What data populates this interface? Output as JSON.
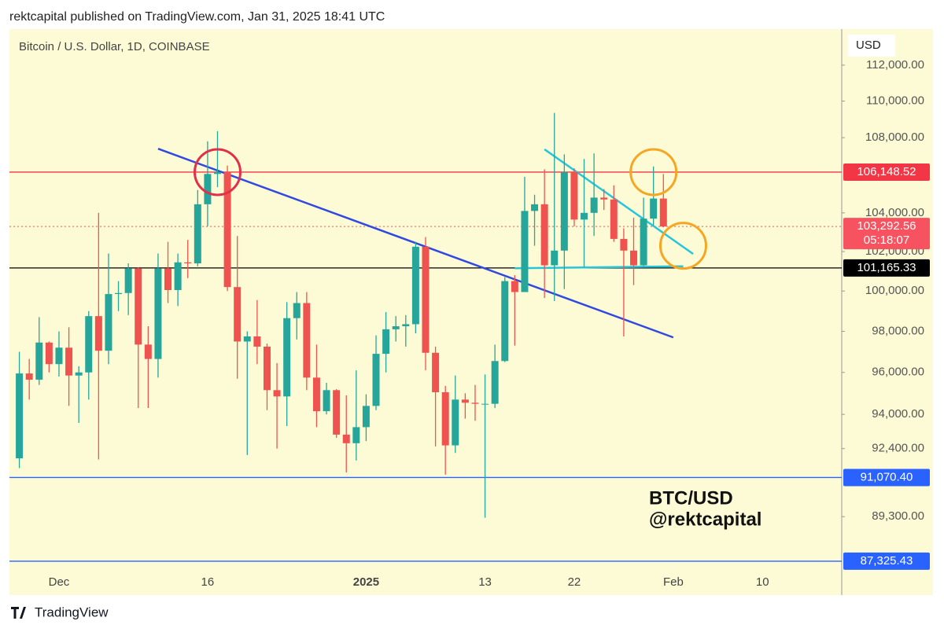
{
  "chart_data": {
    "type": "candlestick",
    "header": "rektcapital published on TradingView.com, Jan 31, 2025 18:41 UTC",
    "title": "Bitcoin / U.S. Dollar, 1D, COINBASE",
    "currency": "USD",
    "brand": "TradingView",
    "annotations": [
      "BTC/USD",
      "@rektcapital"
    ],
    "log_scale": true,
    "up_color": "#26a69a",
    "down_color": "#ef5350",
    "x": [
      "2024-11-27",
      "2024-11-28",
      "2024-11-29",
      "2024-11-30",
      "2024-12-01",
      "2024-12-02",
      "2024-12-03",
      "2024-12-04",
      "2024-12-05",
      "2024-12-06",
      "2024-12-07",
      "2024-12-08",
      "2024-12-09",
      "2024-12-10",
      "2024-12-11",
      "2024-12-12",
      "2024-12-13",
      "2024-12-14",
      "2024-12-15",
      "2024-12-16",
      "2024-12-17",
      "2024-12-18",
      "2024-12-19",
      "2024-12-20",
      "2024-12-21",
      "2024-12-22",
      "2024-12-23",
      "2024-12-24",
      "2024-12-25",
      "2024-12-26",
      "2024-12-27",
      "2024-12-28",
      "2024-12-29",
      "2024-12-30",
      "2024-12-31",
      "2025-01-01",
      "2025-01-02",
      "2025-01-03",
      "2025-01-04",
      "2025-01-05",
      "2025-01-06",
      "2025-01-07",
      "2025-01-08",
      "2025-01-09",
      "2025-01-10",
      "2025-01-11",
      "2025-01-12",
      "2025-01-13",
      "2025-01-14",
      "2025-01-15",
      "2025-01-16",
      "2025-01-17",
      "2025-01-18",
      "2025-01-19",
      "2025-01-20",
      "2025-01-21",
      "2025-01-22",
      "2025-01-23",
      "2025-01-24",
      "2025-01-25",
      "2025-01-26",
      "2025-01-27",
      "2025-01-28",
      "2025-01-29",
      "2025-01-30",
      "2025-01-31"
    ],
    "open": [
      91950,
      95950,
      95650,
      97450,
      96400,
      97200,
      95850,
      96000,
      98750,
      97050,
      99850,
      99900,
      101150,
      97350,
      96650,
      101150,
      100050,
      101450,
      101400,
      104450,
      106050,
      106150,
      100200,
      97500,
      97750,
      97250,
      95150,
      94850,
      98650,
      99400,
      95750,
      94150,
      95150,
      93050,
      92650,
      93400,
      94400,
      96900,
      98100,
      98250,
      98350,
      102250,
      96950,
      95050,
      92550,
      94700,
      94550,
      94500,
      94500,
      96550,
      100500,
      99950,
      104100,
      104450,
      101300,
      102050,
      106150,
      103650,
      104000,
      104800,
      104700,
      102650,
      102050,
      101300,
      103700,
      104750
    ],
    "high": [
      97000,
      96650,
      98700,
      97500,
      98000,
      98200,
      96300,
      99000,
      104000,
      101900,
      100500,
      101400,
      101200,
      98250,
      101900,
      102500,
      101900,
      102600,
      105200,
      107800,
      108350,
      106500,
      102800,
      98000,
      99550,
      97400,
      96450,
      99450,
      99950,
      99950,
      97350,
      95500,
      95200,
      94900,
      96100,
      94950,
      97800,
      98950,
      98750,
      98800,
      102500,
      102750,
      97250,
      95350,
      95850,
      95000,
      95400,
      95900,
      97350,
      100700,
      100800,
      105900,
      104950,
      106300,
      109350,
      107100,
      106350,
      106850,
      107150,
      105250,
      105450,
      103200,
      103750,
      104800,
      106450,
      106050
    ],
    "low": [
      91500,
      94700,
      95400,
      96000,
      95800,
      94400,
      93600,
      94700,
      91900,
      96400,
      99000,
      98800,
      94300,
      94300,
      95750,
      99400,
      99250,
      100650,
      101250,
      103300,
      105350,
      100000,
      95700,
      92100,
      96400,
      94200,
      92400,
      93450,
      97600,
      95150,
      93400,
      94000,
      92900,
      91300,
      91850,
      92750,
      94200,
      96000,
      97500,
      97250,
      97900,
      96100,
      92500,
      91200,
      92200,
      93800,
      93700,
      89250,
      94300,
      96500,
      97300,
      99950,
      102300,
      99650,
      99500,
      100100,
      103300,
      101200,
      102800,
      104150,
      102500,
      97750,
      100300,
      101250,
      103350,
      103250
    ],
    "close": [
      95950,
      95650,
      97450,
      96400,
      97200,
      95850,
      96000,
      98750,
      97050,
      99850,
      99900,
      101150,
      97350,
      96650,
      101150,
      100050,
      101450,
      101400,
      104450,
      106050,
      106150,
      100200,
      97500,
      97750,
      97250,
      95150,
      94850,
      98650,
      99400,
      95750,
      94150,
      95150,
      93050,
      92650,
      93400,
      94400,
      96900,
      98100,
      98250,
      98350,
      102250,
      96950,
      95050,
      92550,
      94700,
      94550,
      94500,
      94500,
      96550,
      100500,
      99950,
      104100,
      104450,
      101300,
      102050,
      106150,
      103650,
      104000,
      104800,
      104700,
      102650,
      102050,
      101300,
      103700,
      104750,
      103290
    ],
    "xlim": [
      "2024-11-26",
      "2025-02-18"
    ],
    "xticks": [
      {
        "value": "2024-12-01",
        "label": "Dec"
      },
      {
        "value": "2024-12-16",
        "label": "16"
      },
      {
        "value": "2025-01-01",
        "label": "2025"
      },
      {
        "value": "2025-01-13",
        "label": "13"
      },
      {
        "value": "2025-01-22",
        "label": "22"
      },
      {
        "value": "2025-02-01",
        "label": "Feb"
      },
      {
        "value": "2025-02-10",
        "label": "10"
      }
    ],
    "ylim": [
      86500,
      114000
    ],
    "yticks": [
      {
        "value": 112000,
        "label": "112,000.00"
      },
      {
        "value": 110000,
        "label": "110,000.00"
      },
      {
        "value": 108000,
        "label": "108,000.00"
      },
      {
        "value": 104000,
        "label": "104,000.00"
      },
      {
        "value": 102000,
        "label": "102,000.00"
      },
      {
        "value": 100000,
        "label": "100,000.00"
      },
      {
        "value": 98000,
        "label": "98,000.00"
      },
      {
        "value": 96000,
        "label": "96,000.00"
      },
      {
        "value": 94000,
        "label": "94,000.00"
      },
      {
        "value": 92400,
        "label": "92,400.00"
      },
      {
        "value": 89300,
        "label": "89,300.00"
      }
    ],
    "levels": [
      {
        "value": 106148.52,
        "label": "106,148.52",
        "color": "#f23645"
      },
      {
        "value": 103292.56,
        "label": "103,292.56",
        "color": "#f7525f",
        "countdown": "05:18:07",
        "dotted": true
      },
      {
        "value": 101165.33,
        "label": "101,165.33",
        "color": "#000000"
      },
      {
        "value": 91070.4,
        "label": "91,070.40",
        "color": "#2962ff"
      },
      {
        "value": 87325.43,
        "label": "87,325.43",
        "color": "#2962ff"
      }
    ],
    "trendlines": [
      {
        "from": [
          "2024-12-11",
          107400
        ],
        "to": [
          "2025-02-01",
          97700
        ],
        "color": "#3049e0"
      },
      {
        "from": [
          "2025-01-19",
          107370
        ],
        "to": [
          "2025-02-03",
          101880
        ],
        "color": "#26c6da"
      },
      {
        "from": [
          "2025-01-16",
          101150
        ],
        "to": [
          "2025-02-02",
          101250
        ],
        "color": "#26c6da"
      }
    ],
    "circles": [
      {
        "at": [
          "2024-12-17",
          106148.52
        ],
        "color": "#e0304a"
      },
      {
        "at": [
          "2025-01-30",
          106148.52
        ],
        "color": "#f5a623"
      },
      {
        "at": [
          "2025-02-02",
          102300
        ],
        "color": "#f5a623"
      }
    ]
  }
}
